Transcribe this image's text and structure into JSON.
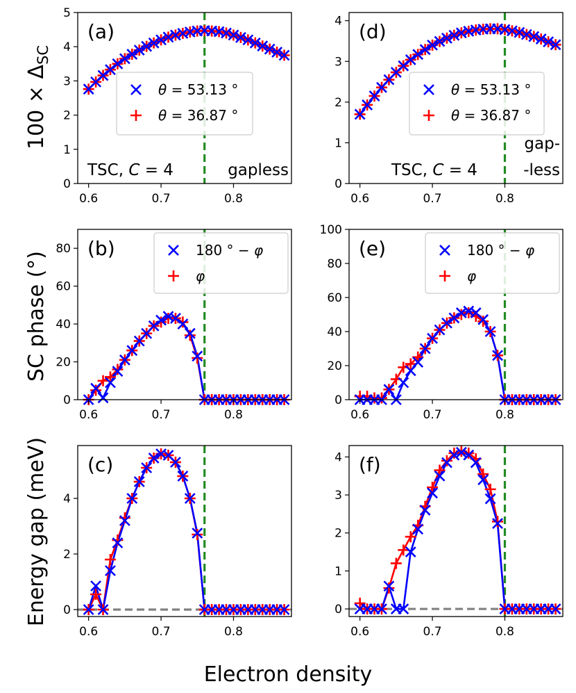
{
  "figure": {
    "xlabel": "Electron density",
    "ylabel_top": "100 × Δ",
    "ylabel_top_sub": "SC",
    "ylabel_mid": "SC phase (°)",
    "ylabel_bot": "Energy gap (meV)"
  },
  "colors": {
    "blue": "#0000ff",
    "red": "#ff0000",
    "green": "#228b22",
    "grey": "#808080"
  },
  "chart_data": [
    {
      "panel": "(a)",
      "type": "line",
      "xlim": [
        0.585,
        0.88
      ],
      "ylim": [
        0,
        5
      ],
      "xticks": [
        0.6,
        0.7,
        0.8
      ],
      "yticks": [
        0,
        1,
        2,
        3,
        4,
        5
      ],
      "vline": 0.76,
      "hline": null,
      "annotations": [
        {
          "text": "TSC, C = 4",
          "where": "bottom-left"
        },
        {
          "text": "gapless",
          "where": "bottom-right"
        }
      ],
      "legend": {
        "where": "center",
        "entries": [
          "θ = 53.13 °",
          "θ = 36.87 °"
        ]
      },
      "series": [
        {
          "name": "θ = 53.13 °",
          "marker": "x",
          "color": "blue",
          "x": [
            0.6,
            0.61,
            0.62,
            0.63,
            0.64,
            0.65,
            0.66,
            0.67,
            0.68,
            0.69,
            0.7,
            0.71,
            0.72,
            0.73,
            0.74,
            0.75,
            0.76,
            0.77,
            0.78,
            0.79,
            0.8,
            0.81,
            0.82,
            0.83,
            0.84,
            0.85,
            0.86,
            0.87
          ],
          "y": [
            2.76,
            2.97,
            3.16,
            3.33,
            3.5,
            3.65,
            3.78,
            3.9,
            4.01,
            4.11,
            4.2,
            4.28,
            4.34,
            4.39,
            4.43,
            4.46,
            4.47,
            4.46,
            4.44,
            4.4,
            4.34,
            4.27,
            4.2,
            4.11,
            4.02,
            3.93,
            3.84,
            3.75
          ]
        },
        {
          "name": "θ = 36.87 °",
          "marker": "+",
          "color": "red",
          "x": [
            0.6,
            0.61,
            0.62,
            0.63,
            0.64,
            0.65,
            0.66,
            0.67,
            0.68,
            0.69,
            0.7,
            0.71,
            0.72,
            0.73,
            0.74,
            0.75,
            0.76,
            0.77,
            0.78,
            0.79,
            0.8,
            0.81,
            0.82,
            0.83,
            0.84,
            0.85,
            0.86,
            0.87
          ],
          "y": [
            2.76,
            2.97,
            3.16,
            3.33,
            3.5,
            3.65,
            3.78,
            3.9,
            4.01,
            4.11,
            4.2,
            4.28,
            4.34,
            4.39,
            4.43,
            4.46,
            4.47,
            4.46,
            4.44,
            4.4,
            4.34,
            4.27,
            4.2,
            4.11,
            4.02,
            3.93,
            3.84,
            3.75
          ]
        }
      ]
    },
    {
      "panel": "(d)",
      "type": "line",
      "xlim": [
        0.585,
        0.88
      ],
      "ylim": [
        0,
        4.2
      ],
      "xticks": [
        0.6,
        0.7,
        0.8
      ],
      "yticks": [
        0,
        1,
        2,
        3,
        4
      ],
      "vline": 0.8,
      "hline": null,
      "annotations": [
        {
          "text": "TSC, C = 4",
          "where": "bottom-center"
        },
        {
          "text": "gap-",
          "where": "right"
        },
        {
          "text": "-less",
          "where": "right"
        }
      ],
      "legend": {
        "where": "center-right",
        "entries": [
          "θ = 53.13 °",
          "θ = 36.87 °"
        ]
      },
      "series": [
        {
          "name": "θ = 53.13 °",
          "marker": "x",
          "color": "blue",
          "x": [
            0.6,
            0.61,
            0.62,
            0.63,
            0.64,
            0.65,
            0.66,
            0.67,
            0.68,
            0.69,
            0.7,
            0.71,
            0.72,
            0.73,
            0.74,
            0.75,
            0.76,
            0.77,
            0.78,
            0.79,
            0.8,
            0.81,
            0.82,
            0.83,
            0.84,
            0.85,
            0.86,
            0.87
          ],
          "y": [
            1.7,
            1.93,
            2.15,
            2.36,
            2.55,
            2.73,
            2.89,
            3.04,
            3.17,
            3.29,
            3.4,
            3.49,
            3.57,
            3.64,
            3.7,
            3.74,
            3.77,
            3.79,
            3.8,
            3.8,
            3.78,
            3.75,
            3.71,
            3.66,
            3.61,
            3.55,
            3.48,
            3.41
          ]
        },
        {
          "name": "θ = 36.87 °",
          "marker": "+",
          "color": "red",
          "x": [
            0.6,
            0.61,
            0.62,
            0.63,
            0.64,
            0.65,
            0.66,
            0.67,
            0.68,
            0.69,
            0.7,
            0.71,
            0.72,
            0.73,
            0.74,
            0.75,
            0.76,
            0.77,
            0.78,
            0.79,
            0.8,
            0.81,
            0.82,
            0.83,
            0.84,
            0.85,
            0.86,
            0.87
          ],
          "y": [
            1.7,
            1.93,
            2.15,
            2.36,
            2.55,
            2.73,
            2.89,
            3.04,
            3.17,
            3.29,
            3.4,
            3.49,
            3.57,
            3.64,
            3.7,
            3.74,
            3.77,
            3.79,
            3.8,
            3.8,
            3.78,
            3.75,
            3.71,
            3.66,
            3.61,
            3.55,
            3.48,
            3.41
          ]
        }
      ]
    },
    {
      "panel": "(b)",
      "type": "line",
      "xlim": [
        0.585,
        0.88
      ],
      "ylim": [
        0,
        90
      ],
      "xticks": [
        0.6,
        0.7,
        0.8
      ],
      "yticks": [
        0,
        20,
        40,
        60,
        80
      ],
      "vline": 0.76,
      "hline": null,
      "annotations": [],
      "legend": {
        "where": "top-right",
        "entries": [
          "180 ° − φ",
          "φ"
        ]
      },
      "series": [
        {
          "name": "180 ° − φ",
          "marker": "x",
          "color": "blue",
          "x": [
            0.6,
            0.61,
            0.62,
            0.63,
            0.64,
            0.65,
            0.66,
            0.67,
            0.68,
            0.69,
            0.7,
            0.71,
            0.72,
            0.73,
            0.74,
            0.75,
            0.76,
            0.77,
            0.78,
            0.79,
            0.8,
            0.81,
            0.82,
            0.83,
            0.84,
            0.85,
            0.86,
            0.87
          ],
          "y": [
            0,
            6,
            1,
            9,
            15,
            21,
            26,
            31,
            35,
            39,
            42,
            44,
            43,
            40,
            35,
            23,
            0,
            0,
            0,
            0,
            0,
            0,
            0,
            0,
            0,
            0,
            0,
            0
          ]
        },
        {
          "name": "φ",
          "marker": "+",
          "color": "red",
          "x": [
            0.6,
            0.61,
            0.62,
            0.63,
            0.64,
            0.65,
            0.66,
            0.67,
            0.68,
            0.69,
            0.7,
            0.71,
            0.72,
            0.73,
            0.74,
            0.75,
            0.76,
            0.77,
            0.78,
            0.79,
            0.8,
            0.81,
            0.82,
            0.83,
            0.84,
            0.85,
            0.86,
            0.87
          ],
          "y": [
            0,
            5,
            10,
            12,
            16,
            21,
            26,
            31,
            35,
            39,
            41,
            43,
            43,
            41,
            34,
            22,
            0,
            0,
            0,
            0,
            0,
            0,
            0,
            0,
            0,
            0,
            0,
            0
          ]
        }
      ]
    },
    {
      "panel": "(e)",
      "type": "line",
      "xlim": [
        0.585,
        0.88
      ],
      "ylim": [
        0,
        100
      ],
      "xticks": [
        0.6,
        0.7,
        0.8
      ],
      "yticks": [
        0,
        20,
        40,
        60,
        80,
        100
      ],
      "vline": 0.8,
      "hline": null,
      "annotations": [],
      "legend": {
        "where": "top-right",
        "entries": [
          "180 ° − φ",
          "φ"
        ]
      },
      "series": [
        {
          "name": "180 ° − φ",
          "marker": "x",
          "color": "blue",
          "x": [
            0.6,
            0.61,
            0.62,
            0.63,
            0.64,
            0.65,
            0.66,
            0.67,
            0.68,
            0.69,
            0.7,
            0.71,
            0.72,
            0.73,
            0.74,
            0.75,
            0.76,
            0.77,
            0.78,
            0.79,
            0.8,
            0.81,
            0.82,
            0.83,
            0.84,
            0.85,
            0.86,
            0.87
          ],
          "y": [
            0,
            0,
            0,
            0,
            6,
            0,
            10,
            17,
            22,
            30,
            36,
            41,
            45,
            48,
            51,
            52,
            51,
            47,
            40,
            26,
            0,
            0,
            0,
            0,
            0,
            0,
            0,
            0
          ]
        },
        {
          "name": "φ",
          "marker": "+",
          "color": "red",
          "x": [
            0.6,
            0.61,
            0.62,
            0.63,
            0.64,
            0.65,
            0.66,
            0.67,
            0.68,
            0.69,
            0.7,
            0.71,
            0.72,
            0.73,
            0.74,
            0.75,
            0.76,
            0.77,
            0.78,
            0.79,
            0.8,
            0.81,
            0.82,
            0.83,
            0.84,
            0.85,
            0.86,
            0.87
          ],
          "y": [
            2,
            2,
            1,
            1,
            6,
            12,
            19,
            21,
            25,
            30,
            36,
            41,
            45,
            48,
            50,
            51,
            49,
            46,
            40,
            26,
            0,
            0,
            0,
            0,
            0,
            0,
            0,
            0
          ]
        }
      ]
    },
    {
      "panel": "(c)",
      "type": "line",
      "xlim": [
        0.585,
        0.88
      ],
      "ylim": [
        -0.25,
        5.9
      ],
      "xticks": [
        0.6,
        0.7,
        0.8
      ],
      "yticks": [
        0,
        2,
        4
      ],
      "vline": 0.76,
      "hline": 0,
      "annotations": [],
      "legend": null,
      "series": [
        {
          "name": "θ = 53.13 °",
          "marker": "x",
          "color": "blue",
          "x": [
            0.6,
            0.61,
            0.62,
            0.63,
            0.64,
            0.65,
            0.66,
            0.67,
            0.68,
            0.69,
            0.7,
            0.71,
            0.72,
            0.73,
            0.74,
            0.75,
            0.76,
            0.77,
            0.78,
            0.79,
            0.8,
            0.81,
            0.82,
            0.83,
            0.84,
            0.85,
            0.86,
            0.87
          ],
          "y": [
            0,
            0.85,
            0,
            1.4,
            2.4,
            3.2,
            4.0,
            4.6,
            5.1,
            5.45,
            5.6,
            5.55,
            5.3,
            4.8,
            4.0,
            2.75,
            0,
            0,
            0,
            0,
            0,
            0,
            0,
            0,
            0,
            0,
            0,
            0
          ]
        },
        {
          "name": "θ = 36.87 °",
          "marker": "+",
          "color": "red",
          "x": [
            0.6,
            0.61,
            0.62,
            0.63,
            0.64,
            0.65,
            0.66,
            0.67,
            0.68,
            0.69,
            0.7,
            0.71,
            0.72,
            0.73,
            0.74,
            0.75,
            0.76,
            0.77,
            0.78,
            0.79,
            0.8,
            0.81,
            0.82,
            0.83,
            0.84,
            0.85,
            0.86,
            0.87
          ],
          "y": [
            0,
            0.55,
            0,
            1.8,
            2.5,
            3.3,
            4.0,
            4.6,
            5.1,
            5.45,
            5.6,
            5.55,
            5.3,
            4.8,
            4.0,
            2.7,
            0,
            0,
            0,
            0,
            0,
            0,
            0,
            0,
            0,
            0,
            0,
            0
          ]
        }
      ]
    },
    {
      "panel": "(f)",
      "type": "line",
      "xlim": [
        0.585,
        0.88
      ],
      "ylim": [
        -0.2,
        4.3
      ],
      "xticks": [
        0.6,
        0.7,
        0.8
      ],
      "yticks": [
        0,
        1,
        2,
        3,
        4
      ],
      "vline": 0.8,
      "hline": 0,
      "annotations": [],
      "legend": null,
      "series": [
        {
          "name": "θ = 53.13 °",
          "marker": "x",
          "color": "blue",
          "x": [
            0.6,
            0.61,
            0.62,
            0.63,
            0.64,
            0.65,
            0.66,
            0.67,
            0.68,
            0.69,
            0.7,
            0.71,
            0.72,
            0.73,
            0.74,
            0.75,
            0.76,
            0.77,
            0.78,
            0.79,
            0.8,
            0.81,
            0.82,
            0.83,
            0.84,
            0.85,
            0.86,
            0.87
          ],
          "y": [
            0,
            0,
            0,
            0,
            0.6,
            0,
            0,
            1.5,
            2.1,
            2.6,
            3.05,
            3.5,
            3.85,
            4.05,
            4.12,
            4.05,
            3.85,
            3.4,
            2.9,
            2.25,
            0,
            0,
            0,
            0,
            0,
            0,
            0,
            0
          ]
        },
        {
          "name": "θ = 36.87 °",
          "marker": "+",
          "color": "red",
          "x": [
            0.6,
            0.61,
            0.62,
            0.63,
            0.64,
            0.65,
            0.66,
            0.67,
            0.68,
            0.69,
            0.7,
            0.71,
            0.72,
            0.73,
            0.74,
            0.75,
            0.76,
            0.77,
            0.78,
            0.79,
            0.8,
            0.81,
            0.82,
            0.83,
            0.84,
            0.85,
            0.86,
            0.87
          ],
          "y": [
            0.15,
            0,
            0,
            0,
            0.55,
            1.2,
            1.55,
            1.9,
            2.2,
            2.7,
            3.2,
            3.65,
            3.9,
            4.1,
            4.15,
            4.1,
            3.95,
            3.55,
            3.15,
            2.3,
            0,
            0,
            0,
            0,
            0,
            0,
            0,
            0
          ]
        }
      ]
    }
  ]
}
